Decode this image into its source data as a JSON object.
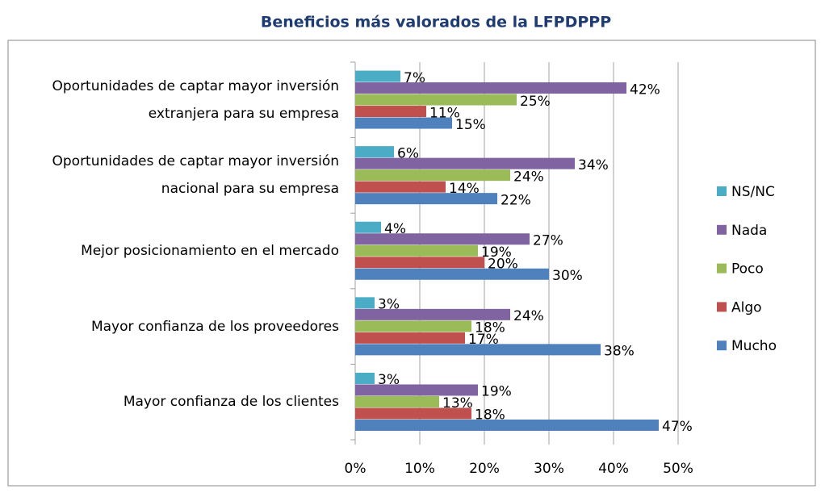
{
  "chart_data": {
    "type": "bar",
    "orientation": "horizontal",
    "title": "Beneficios más valorados de la LFPDPPP",
    "categories": [
      "Oportunidades de captar mayor inversión extranjera para su empresa",
      "Oportunidades de captar mayor inversión nacional para su empresa",
      "Mejor posicionamiento en el mercado",
      "Mayor confianza de los proveedores",
      "Mayor confianza de los clientes"
    ],
    "series": [
      {
        "name": "NS/NC",
        "color": "#4bacc6",
        "values": [
          7,
          6,
          4,
          3,
          3
        ],
        "value_labels": [
          "7%",
          "6%",
          "4%",
          "3%",
          "3%"
        ]
      },
      {
        "name": "Nada",
        "color": "#8064a2",
        "values": [
          42,
          34,
          27,
          24,
          19
        ],
        "value_labels": [
          "42%",
          "34%",
          "27%",
          "24%",
          "19%"
        ]
      },
      {
        "name": "Poco",
        "color": "#9bbb59",
        "values": [
          25,
          24,
          19,
          18,
          13
        ],
        "value_labels": [
          "25%",
          "24%",
          "19%",
          "18%",
          "13%"
        ]
      },
      {
        "name": "Algo",
        "color": "#c0504d",
        "values": [
          11,
          14,
          20,
          17,
          18
        ],
        "value_labels": [
          "11%",
          "14%",
          "20%",
          "17%",
          "18%"
        ]
      },
      {
        "name": "Mucho",
        "color": "#4f81bd",
        "values": [
          15,
          22,
          30,
          38,
          47
        ],
        "value_labels": [
          "15%",
          "22%",
          "30%",
          "38%",
          "47%"
        ]
      }
    ],
    "xlim": [
      0,
      50
    ],
    "xticks": [
      {
        "value": 0,
        "label": "0%"
      },
      {
        "value": 10,
        "label": "10%"
      },
      {
        "value": 20,
        "label": "20%"
      },
      {
        "value": 30,
        "label": "30%"
      },
      {
        "value": 40,
        "label": "40%"
      },
      {
        "value": 50,
        "label": "50%"
      }
    ],
    "grid": true,
    "legend": "right"
  }
}
